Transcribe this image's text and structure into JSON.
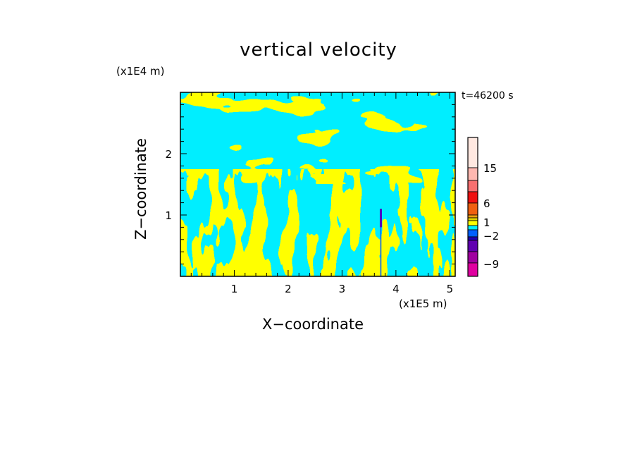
{
  "chart_data": {
    "type": "heatmap",
    "title": "vertical velocity",
    "xlabel": "X−coordinate",
    "ylabel": "Z−coordinate",
    "x_unit": "(x1E5 m)",
    "z_unit": "(x1E4 m)",
    "time_label": "t=46200 s",
    "xlim": [
      0,
      5.1
    ],
    "ylim": [
      0,
      3.0
    ],
    "x_ticks": [
      1,
      2,
      3,
      4,
      5
    ],
    "x_tick_labels": [
      "1",
      "2",
      "3",
      "4",
      "5"
    ],
    "y_ticks": [
      1,
      2
    ],
    "y_tick_labels": [
      "1",
      "2"
    ],
    "colorbar": {
      "labels": [
        "15",
        "6",
        "1",
        "−2",
        "−9"
      ],
      "levels": [
        15,
        6,
        1,
        -2,
        -9
      ],
      "colors": [
        "#ffe8e0",
        "#ffb8b0",
        "#f87070",
        "#f01010",
        "#f06010",
        "#f0a010",
        "#e0d000",
        "#ffff00",
        "#00eeff",
        "#0060ff",
        "#2000b0",
        "#6000b0",
        "#a000a0",
        "#e000a0"
      ]
    },
    "field_colors": {
      "positive": "#ffff00",
      "negative": "#00eeff",
      "strong_negative": "#5000c0"
    }
  }
}
